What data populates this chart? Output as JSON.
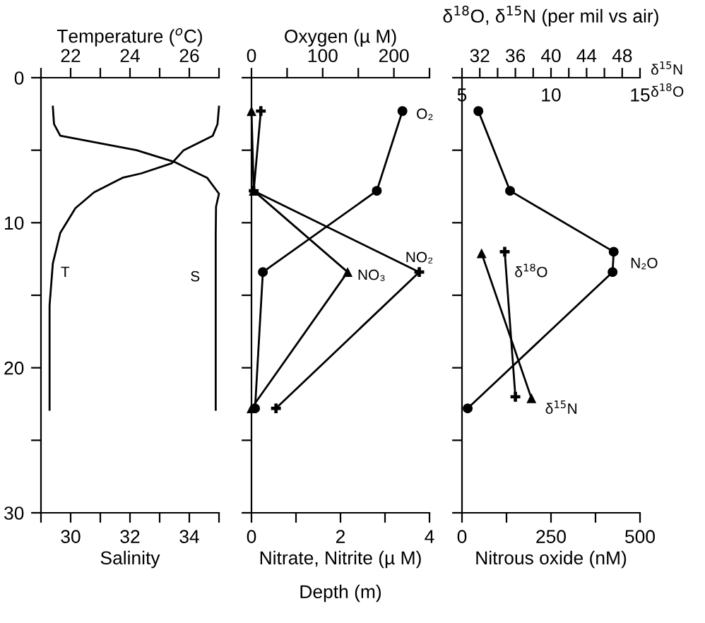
{
  "chart_data": [
    {
      "type": "line",
      "xlabel": "Salinity",
      "x2label": "Temperature ($^{o}$C)",
      "ylabel": "Depth (m)",
      "xlim": [
        29,
        35
      ],
      "xticks": [
        {
          "value": 29,
          "label": null
        },
        30,
        {
          "value": 31,
          "label": null
        },
        32,
        {
          "value": 33,
          "label": null
        },
        34,
        {
          "value": 35,
          "label": null
        }
      ],
      "x2lim": [
        21,
        27
      ],
      "x2ticks": [
        {
          "value": 21,
          "label": null
        },
        22,
        {
          "value": 23,
          "label": null
        },
        24,
        {
          "value": 25,
          "label": null
        },
        26,
        {
          "value": 27,
          "label": null
        }
      ],
      "ylim": [
        30,
        0
      ],
      "yticks": [
        0,
        {
          "value": 5,
          "label": null
        },
        10,
        {
          "value": 15,
          "label": null
        },
        20,
        {
          "value": 25,
          "label": null
        },
        30
      ],
      "grid": false,
      "series": [
        {
          "name": "T",
          "axis": "x2",
          "color": "#000000",
          "marker": "none",
          "x": [
            27.0,
            26.95,
            26.79,
            25.81,
            25.41,
            24.38,
            23.75,
            22.79,
            22.16,
            21.65,
            21.4,
            21.29,
            21.29
          ],
          "values": [
            2.0,
            3.2,
            4.0,
            5.0,
            5.9,
            6.6,
            6.9,
            7.9,
            9.0,
            10.7,
            12.8,
            15.7,
            22.9
          ]
        },
        {
          "name": "S",
          "color": "#000000",
          "marker": "none",
          "x": [
            29.4,
            29.44,
            29.65,
            32.22,
            33.49,
            34.6,
            35.0,
            34.9,
            34.89,
            34.89
          ],
          "values": [
            2.0,
            3.2,
            4.0,
            5.0,
            5.8,
            6.9,
            8.0,
            8.9,
            10.8,
            22.9
          ]
        }
      ]
    },
    {
      "type": "line",
      "xlabel": "Nitrate, Nitrite (µ M)",
      "x2label": "Oxygen (µ M)",
      "xlim": [
        0,
        4
      ],
      "xticks": [
        0,
        {
          "value": 1,
          "label": null
        },
        2,
        {
          "value": 3,
          "label": null
        },
        4
      ],
      "x2lim": [
        0,
        250
      ],
      "x2ticks": [
        0,
        {
          "value": 50,
          "label": null
        },
        100,
        {
          "value": 150,
          "label": null
        },
        200,
        {
          "value": 250,
          "label": null
        }
      ],
      "ylim": [
        30,
        0
      ],
      "yticks": [
        {
          "value": 0,
          "label": null
        },
        {
          "value": 5,
          "label": null
        },
        {
          "value": 10,
          "label": null
        },
        {
          "value": 15,
          "label": null
        },
        {
          "value": 20,
          "label": null
        },
        {
          "value": 25,
          "label": null
        },
        {
          "value": 30,
          "label": null
        }
      ],
      "tick_labels": "x",
      "grid": false,
      "series": [
        {
          "name": "O₂",
          "axis": "x2",
          "color": "#000000",
          "marker": "circle",
          "x": [
            212,
            176,
            16,
            5
          ],
          "values": [
            2.3,
            7.8,
            13.4,
            22.8
          ]
        },
        {
          "name": "NO₃",
          "color": "#000000",
          "marker": "triangle",
          "x": [
            0,
            0.05,
            2.16,
            0
          ],
          "values": [
            2.3,
            7.8,
            13.4,
            22.8
          ]
        },
        {
          "name": "NO₂",
          "color": "#000000",
          "marker": "cross",
          "x": [
            0.21,
            0.05,
            3.77,
            0.55
          ],
          "values": [
            2.3,
            7.8,
            13.4,
            22.8
          ]
        }
      ]
    },
    {
      "type": "line",
      "title": "δ$^{18}$O, δ$^{15}$N (per mil vs air)",
      "xlabel": "Nitrous oxide (nM)",
      "x2label": "δ$^{15}$N",
      "xlim": [
        0,
        500
      ],
      "xticks": [
        0,
        {
          "value": 125,
          "label": null
        },
        250,
        {
          "value": 375,
          "label": null
        },
        500
      ],
      "x2lim": [
        30,
        50
      ],
      "x2ticks": [
        {
          "value": 30,
          "label": null
        },
        32,
        {
          "value": 34,
          "label": null
        },
        36,
        {
          "value": 38,
          "label": null
        },
        40,
        {
          "value": 42,
          "label": null
        },
        44,
        {
          "value": 46,
          "label": null
        },
        48,
        {
          "value": 50,
          "label": null
        }
      ],
      "ylim": [
        30,
        0
      ],
      "yticks": [
        {
          "value": 0,
          "label": null
        },
        {
          "value": 5,
          "label": null
        },
        {
          "value": 10,
          "label": null
        },
        {
          "value": 15,
          "label": null
        },
        {
          "value": 20,
          "label": null
        },
        {
          "value": 25,
          "label": null
        },
        {
          "value": 30,
          "label": null
        }
      ],
      "tick_labels": "x",
      "grid": false,
      "series": [
        {
          "name": "N₂O",
          "color": "#000000",
          "marker": "circle",
          "x": [
            46,
            135,
            426,
            423,
            16
          ],
          "values": [
            2.3,
            7.8,
            12.0,
            13.4,
            22.8
          ]
        },
        {
          "name": "δ$^{15}$N",
          "axis": "x2",
          "color": "#000000",
          "marker": "triangle",
          "x": [
            32.2,
            37.8
          ],
          "values": [
            12.1,
            22.1
          ]
        }
      ]
    },
    {
      "type": "line",
      "xlabel": "δ$^{18}$O",
      "xlim": [
        5,
        15
      ],
      "xticks": [
        5,
        10,
        15
      ],
      "ylim": [
        30,
        0
      ],
      "tick_labels": "x",
      "grid": false,
      "series": [
        {
          "name": "δ$^{18}$O",
          "color": "#000000",
          "marker": "cross",
          "x": [
            7.4,
            8.0
          ],
          "values": [
            12.0,
            22.0
          ]
        }
      ]
    }
  ]
}
